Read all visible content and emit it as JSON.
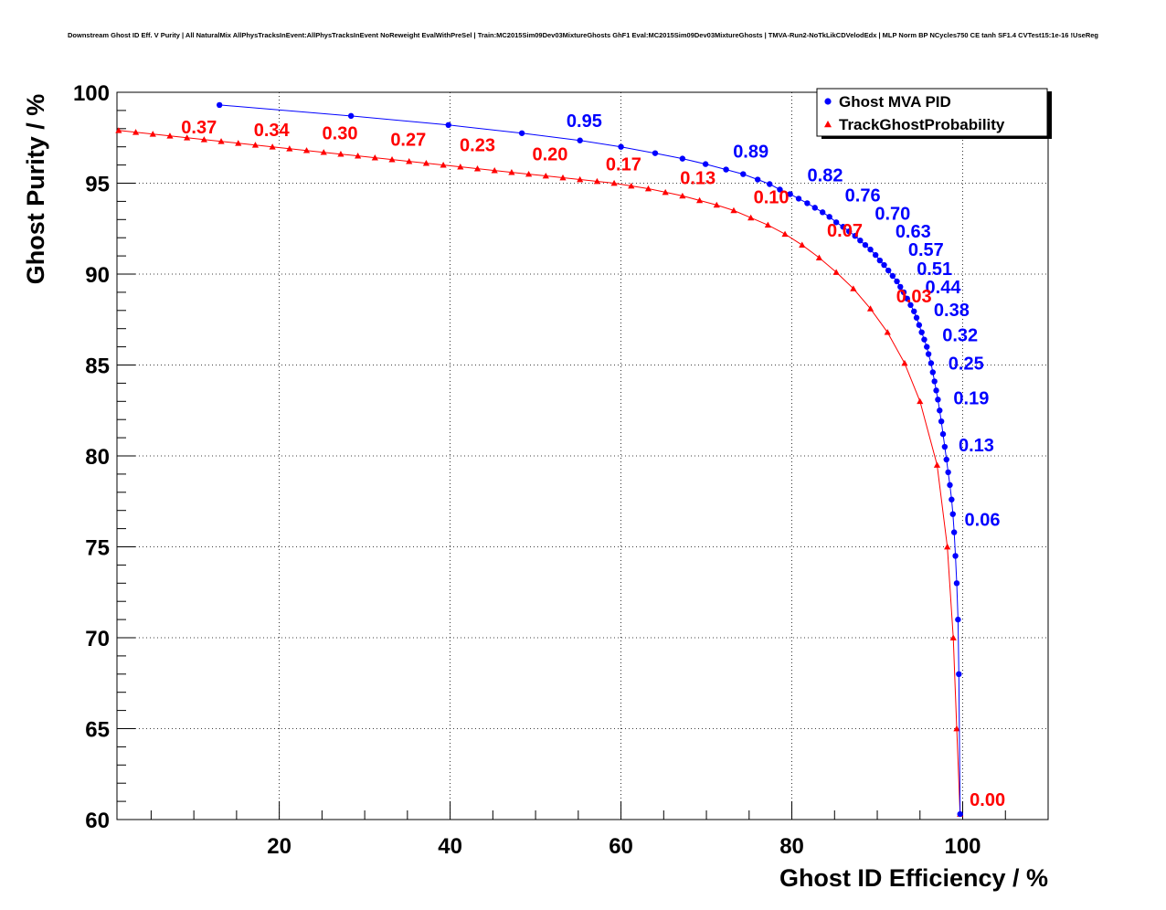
{
  "chart_data": {
    "type": "line",
    "title": "Downstream Ghost ID Eff. V Purity | All NaturalMix AllPhysTracksInEvent:AllPhysTracksInEvent NoReweight EvalWithPreSel | Train:MC2015Sim09Dev03MixtureGhosts GhF1 Eval:MC2015Sim09Dev03MixtureGhosts | TMVA-Run2-NoTkLikCDVelodEdx | MLP Norm BP NCycles750 CE tanh SF1.4 CVTest15:1e-16 !UseReg",
    "xlabel": "Ghost ID Efficiency / %",
    "ylabel": "Ghost Purity / %",
    "xlim": [
      1,
      110
    ],
    "ylim": [
      60,
      100
    ],
    "xticks": [
      "20",
      "40",
      "60",
      "80",
      "100"
    ],
    "yticks": [
      "60",
      "65",
      "70",
      "75",
      "80",
      "85",
      "90",
      "95",
      "100"
    ],
    "grid": true,
    "legend_position": "top-right",
    "legend": [
      {
        "name": "Ghost MVA PID",
        "color": "#0000ff",
        "marker": "circle"
      },
      {
        "name": "TrackGhostProbability",
        "color": "#ff0000",
        "marker": "triangle"
      }
    ],
    "series": [
      {
        "name": "Ghost MVA PID",
        "color": "#0000ff",
        "marker": "circle",
        "points": [
          [
            13.0,
            99.3
          ],
          [
            28.4,
            98.7
          ],
          [
            39.8,
            98.2
          ],
          [
            48.4,
            97.75
          ],
          [
            55.2,
            97.35
          ],
          [
            60.0,
            97.0
          ],
          [
            64.0,
            96.65
          ],
          [
            67.2,
            96.35
          ],
          [
            69.9,
            96.05
          ],
          [
            72.3,
            95.75
          ],
          [
            74.3,
            95.5
          ],
          [
            76.0,
            95.2
          ],
          [
            77.4,
            94.95
          ],
          [
            78.6,
            94.65
          ],
          [
            79.8,
            94.4
          ],
          [
            80.8,
            94.15
          ],
          [
            81.8,
            93.9
          ],
          [
            82.7,
            93.65
          ],
          [
            83.6,
            93.4
          ],
          [
            84.4,
            93.15
          ],
          [
            85.2,
            92.85
          ],
          [
            86.0,
            92.6
          ],
          [
            86.7,
            92.35
          ],
          [
            87.4,
            92.1
          ],
          [
            88.0,
            91.85
          ],
          [
            88.6,
            91.6
          ],
          [
            89.2,
            91.35
          ],
          [
            89.8,
            91.05
          ],
          [
            90.3,
            90.75
          ],
          [
            90.8,
            90.5
          ],
          [
            91.3,
            90.2
          ],
          [
            91.8,
            89.9
          ],
          [
            92.3,
            89.6
          ],
          [
            92.7,
            89.3
          ],
          [
            93.1,
            89.0
          ],
          [
            93.5,
            88.65
          ],
          [
            93.9,
            88.3
          ],
          [
            94.3,
            87.95
          ],
          [
            94.6,
            87.6
          ],
          [
            94.9,
            87.2
          ],
          [
            95.2,
            86.8
          ],
          [
            95.5,
            86.4
          ],
          [
            95.8,
            86.0
          ],
          [
            96.0,
            85.6
          ],
          [
            96.3,
            85.1
          ],
          [
            96.5,
            84.6
          ],
          [
            96.7,
            84.1
          ],
          [
            96.9,
            83.6
          ],
          [
            97.1,
            83.1
          ],
          [
            97.3,
            82.5
          ],
          [
            97.5,
            81.9
          ],
          [
            97.7,
            81.2
          ],
          [
            97.9,
            80.5
          ],
          [
            98.1,
            79.8
          ],
          [
            98.3,
            79.1
          ],
          [
            98.5,
            78.4
          ],
          [
            98.7,
            77.6
          ],
          [
            98.85,
            76.8
          ],
          [
            99.0,
            75.8
          ],
          [
            99.15,
            74.5
          ],
          [
            99.3,
            73.0
          ],
          [
            99.45,
            71.0
          ],
          [
            99.55,
            68.0
          ],
          [
            99.7,
            60.3
          ]
        ],
        "cut_labels": [
          {
            "text": "0.95",
            "x": 55.7,
            "y": 98.1
          },
          {
            "text": "0.89",
            "x": 75.2,
            "y": 96.4
          },
          {
            "text": "0.82",
            "x": 83.9,
            "y": 95.1
          },
          {
            "text": "0.76",
            "x": 88.3,
            "y": 94.0
          },
          {
            "text": "0.70",
            "x": 91.8,
            "y": 93.0
          },
          {
            "text": "0.63",
            "x": 94.2,
            "y": 92.0
          },
          {
            "text": "0.57",
            "x": 95.7,
            "y": 91.0
          },
          {
            "text": "0.51",
            "x": 96.7,
            "y": 89.95
          },
          {
            "text": "0.44",
            "x": 97.7,
            "y": 88.95
          },
          {
            "text": "0.38",
            "x": 98.7,
            "y": 87.7
          },
          {
            "text": "0.32",
            "x": 99.7,
            "y": 86.3
          },
          {
            "text": "0.25",
            "x": 100.4,
            "y": 84.75
          },
          {
            "text": "0.19",
            "x": 101.0,
            "y": 82.85
          },
          {
            "text": "0.13",
            "x": 101.6,
            "y": 80.25
          },
          {
            "text": "0.06",
            "x": 102.3,
            "y": 76.15
          }
        ]
      },
      {
        "name": "TrackGhostProbability",
        "color": "#ff0000",
        "marker": "triangle",
        "points": [
          [
            1.2,
            97.9
          ],
          [
            3.2,
            97.8
          ],
          [
            5.2,
            97.7
          ],
          [
            7.2,
            97.6
          ],
          [
            9.2,
            97.5
          ],
          [
            11.2,
            97.4
          ],
          [
            13.2,
            97.3
          ],
          [
            15.2,
            97.2
          ],
          [
            17.2,
            97.1
          ],
          [
            19.2,
            97.0
          ],
          [
            21.2,
            96.9
          ],
          [
            23.2,
            96.8
          ],
          [
            25.2,
            96.7
          ],
          [
            27.2,
            96.6
          ],
          [
            29.2,
            96.5
          ],
          [
            31.2,
            96.4
          ],
          [
            33.2,
            96.3
          ],
          [
            35.2,
            96.2
          ],
          [
            37.2,
            96.1
          ],
          [
            39.2,
            96.0
          ],
          [
            41.2,
            95.9
          ],
          [
            43.2,
            95.8
          ],
          [
            45.2,
            95.7
          ],
          [
            47.2,
            95.6
          ],
          [
            49.2,
            95.5
          ],
          [
            51.2,
            95.4
          ],
          [
            53.2,
            95.3
          ],
          [
            55.2,
            95.2
          ],
          [
            57.2,
            95.1
          ],
          [
            59.2,
            95.0
          ],
          [
            61.2,
            94.85
          ],
          [
            63.2,
            94.7
          ],
          [
            65.2,
            94.5
          ],
          [
            67.2,
            94.3
          ],
          [
            69.2,
            94.05
          ],
          [
            71.2,
            93.8
          ],
          [
            73.2,
            93.5
          ],
          [
            75.2,
            93.1
          ],
          [
            77.2,
            92.7
          ],
          [
            79.2,
            92.2
          ],
          [
            81.2,
            91.6
          ],
          [
            83.2,
            90.9
          ],
          [
            85.2,
            90.1
          ],
          [
            87.2,
            89.2
          ],
          [
            89.2,
            88.1
          ],
          [
            91.2,
            86.8
          ],
          [
            93.2,
            85.1
          ],
          [
            95.0,
            83.0
          ],
          [
            97.0,
            79.5
          ],
          [
            98.2,
            75.0
          ],
          [
            98.9,
            70.0
          ],
          [
            99.3,
            65.0
          ],
          [
            99.7,
            60.3
          ]
        ],
        "cut_labels": [
          {
            "text": "0.37",
            "x": 10.6,
            "y": 97.75
          },
          {
            "text": "0.34",
            "x": 19.1,
            "y": 97.6
          },
          {
            "text": "0.30",
            "x": 27.1,
            "y": 97.4
          },
          {
            "text": "0.27",
            "x": 35.1,
            "y": 97.05
          },
          {
            "text": "0.23",
            "x": 43.2,
            "y": 96.75
          },
          {
            "text": "0.20",
            "x": 51.7,
            "y": 96.25
          },
          {
            "text": "0.17",
            "x": 60.3,
            "y": 95.7
          },
          {
            "text": "0.13",
            "x": 69.0,
            "y": 94.95
          },
          {
            "text": "0.10",
            "x": 77.6,
            "y": 93.9
          },
          {
            "text": "0.07",
            "x": 86.2,
            "y": 92.05
          },
          {
            "text": "0.03",
            "x": 94.3,
            "y": 88.45
          },
          {
            "text": "0.00",
            "x": 102.9,
            "y": 60.75
          }
        ]
      }
    ]
  }
}
